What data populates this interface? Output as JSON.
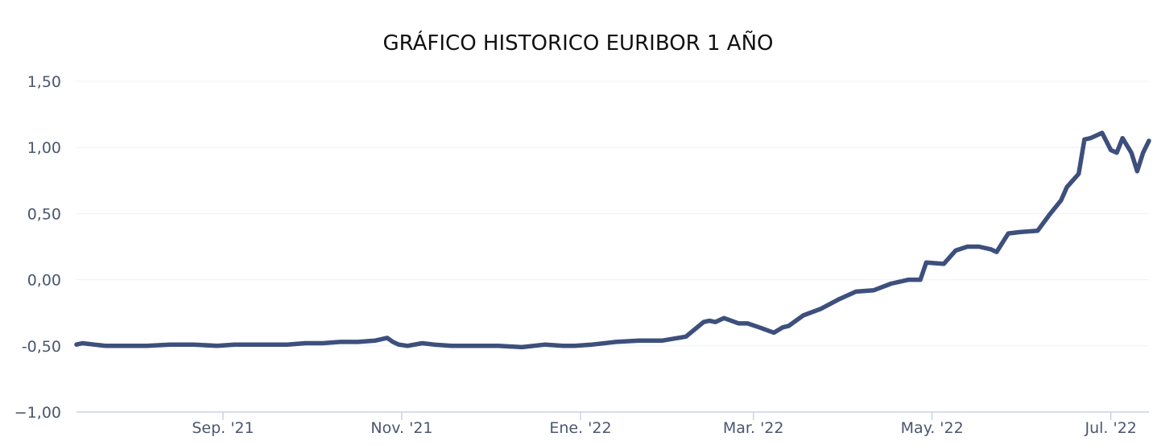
{
  "chart_data": {
    "type": "line",
    "title": "GRÁFICO HISTORICO EURIBOR 1 AÑO",
    "xlabel": "",
    "ylabel": "",
    "ylim": [
      -1.0,
      1.5
    ],
    "xlim": [
      "2021-07-13",
      "2022-07-14"
    ],
    "grid": true,
    "y_ticks": [
      {
        "value": 1.5,
        "label": "1,50"
      },
      {
        "value": 1.0,
        "label": "1,00"
      },
      {
        "value": 0.5,
        "label": "0,50"
      },
      {
        "value": 0.0,
        "label": "0,00"
      },
      {
        "value": -0.5,
        "label": "-0,50"
      },
      {
        "value": -1.0,
        "label": "−1,00"
      }
    ],
    "x_ticks": [
      {
        "date": "2021-09-01",
        "label": "Sep. '21"
      },
      {
        "date": "2021-11-01",
        "label": "Nov. '21"
      },
      {
        "date": "2022-01-01",
        "label": "Ene. '22"
      },
      {
        "date": "2022-03-01",
        "label": "Mar. '22"
      },
      {
        "date": "2022-05-01",
        "label": "May. '22"
      },
      {
        "date": "2022-07-01",
        "label": "Jul. '22"
      }
    ],
    "series": [
      {
        "color": "#3d4f7c",
        "x": [
          "2021-07-13",
          "2021-07-15",
          "2021-07-19",
          "2021-07-23",
          "2021-07-29",
          "2021-08-06",
          "2021-08-14",
          "2021-08-22",
          "2021-08-30",
          "2021-09-05",
          "2021-09-11",
          "2021-09-17",
          "2021-09-23",
          "2021-09-29",
          "2021-10-05",
          "2021-10-11",
          "2021-10-17",
          "2021-10-23",
          "2021-10-27",
          "2021-10-29",
          "2021-10-31",
          "2021-11-03",
          "2021-11-08",
          "2021-11-12",
          "2021-11-18",
          "2021-11-26",
          "2021-12-04",
          "2021-12-12",
          "2021-12-20",
          "2021-12-26",
          "2021-12-30",
          "2022-01-05",
          "2022-01-13",
          "2022-01-21",
          "2022-01-29",
          "2022-02-06",
          "2022-02-12",
          "2022-02-14",
          "2022-02-16",
          "2022-02-19",
          "2022-02-24",
          "2022-02-27",
          "2022-03-03",
          "2022-03-08",
          "2022-03-11",
          "2022-03-13",
          "2022-03-18",
          "2022-03-24",
          "2022-03-30",
          "2022-04-05",
          "2022-04-11",
          "2022-04-17",
          "2022-04-23",
          "2022-04-27",
          "2022-04-29",
          "2022-05-05",
          "2022-05-09",
          "2022-05-13",
          "2022-05-17",
          "2022-05-21",
          "2022-05-23",
          "2022-05-27",
          "2022-05-31",
          "2022-06-06",
          "2022-06-10",
          "2022-06-14",
          "2022-06-16",
          "2022-06-20",
          "2022-06-22",
          "2022-06-24",
          "2022-06-28",
          "2022-07-01",
          "2022-07-03",
          "2022-07-05",
          "2022-07-08",
          "2022-07-10",
          "2022-07-12",
          "2022-07-14"
        ],
        "values": [
          -0.49,
          -0.48,
          -0.49,
          -0.5,
          -0.5,
          -0.5,
          -0.49,
          -0.49,
          -0.5,
          -0.49,
          -0.49,
          -0.49,
          -0.49,
          -0.48,
          -0.48,
          -0.47,
          -0.47,
          -0.46,
          -0.44,
          -0.47,
          -0.49,
          -0.5,
          -0.48,
          -0.49,
          -0.5,
          -0.5,
          -0.5,
          -0.51,
          -0.49,
          -0.5,
          -0.5,
          -0.49,
          -0.47,
          -0.46,
          -0.46,
          -0.43,
          -0.32,
          -0.31,
          -0.32,
          -0.29,
          -0.33,
          -0.33,
          -0.36,
          -0.4,
          -0.36,
          -0.35,
          -0.27,
          -0.22,
          -0.15,
          -0.09,
          -0.08,
          -0.03,
          0.0,
          0.0,
          0.13,
          0.12,
          0.22,
          0.25,
          0.25,
          0.23,
          0.21,
          0.35,
          0.36,
          0.37,
          0.49,
          0.6,
          0.7,
          0.8,
          1.06,
          1.07,
          1.11,
          0.98,
          0.96,
          1.07,
          0.96,
          0.82,
          0.96,
          1.05
        ]
      }
    ]
  }
}
